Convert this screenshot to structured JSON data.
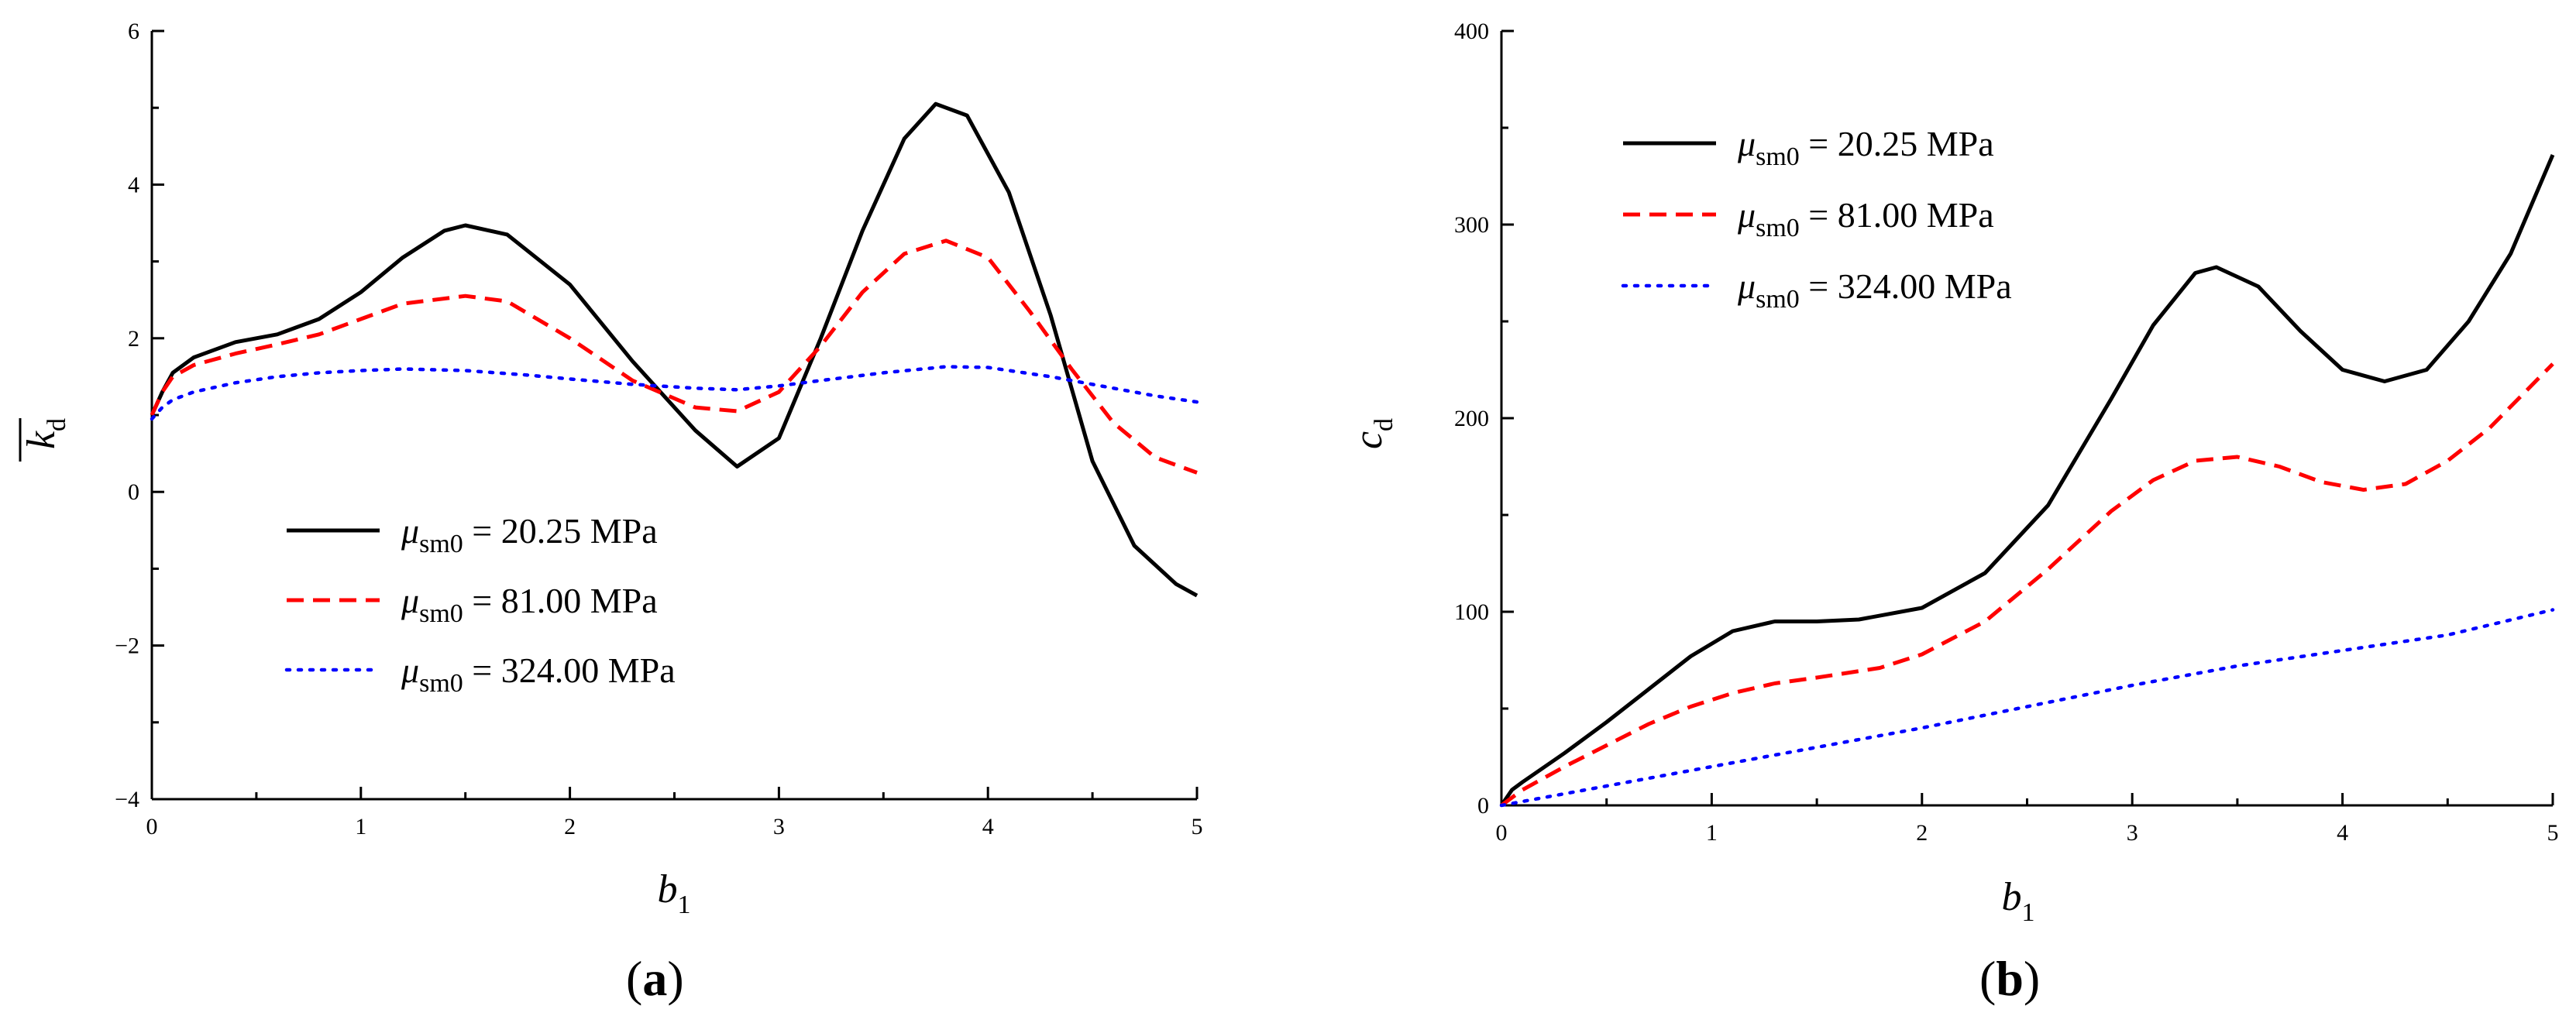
{
  "chart_data": [
    {
      "id": "a",
      "type": "line",
      "panel_label": "(a)",
      "panel_letter": "a",
      "xlabel": "b",
      "xlabel_sub": "1",
      "ylabel": "k",
      "ylabel_sub": "d",
      "xlim": [
        0,
        5
      ],
      "ylim": [
        -4,
        6
      ],
      "xticks": [
        "0",
        "1",
        "2",
        "3",
        "4",
        "5"
      ],
      "yticks": [
        "−4",
        "−2",
        "0",
        "2",
        "4",
        "6"
      ],
      "xtick_values": [
        0,
        1,
        2,
        3,
        4,
        5
      ],
      "ytick_values": [
        -4,
        -2,
        0,
        2,
        4,
        6
      ],
      "legend_position": "lower-center",
      "series": [
        {
          "name_prefix": "μ",
          "name_sub": "sm0",
          "name_rest": " = 20.25 MPa",
          "color": "#000000",
          "style": "solid",
          "x": [
            0,
            0.05,
            0.1,
            0.2,
            0.4,
            0.6,
            0.8,
            1.0,
            1.2,
            1.4,
            1.5,
            1.7,
            2.0,
            2.3,
            2.6,
            2.8,
            3.0,
            3.2,
            3.4,
            3.6,
            3.75,
            3.9,
            4.1,
            4.3,
            4.5,
            4.7,
            4.9,
            5.0
          ],
          "y": [
            1.0,
            1.3,
            1.55,
            1.75,
            1.95,
            2.05,
            2.25,
            2.6,
            3.05,
            3.4,
            3.47,
            3.35,
            2.7,
            1.7,
            0.8,
            0.33,
            0.7,
            2.0,
            3.4,
            4.6,
            5.05,
            4.9,
            3.9,
            2.3,
            0.4,
            -0.7,
            -1.2,
            -1.35
          ]
        },
        {
          "name_prefix": "μ",
          "name_sub": "sm0",
          "name_rest": " = 81.00 MPa",
          "color": "#ff0000",
          "style": "dashed",
          "x": [
            0,
            0.05,
            0.1,
            0.2,
            0.4,
            0.6,
            0.8,
            1.0,
            1.2,
            1.5,
            1.7,
            2.0,
            2.3,
            2.6,
            2.8,
            3.0,
            3.2,
            3.4,
            3.6,
            3.8,
            4.0,
            4.2,
            4.4,
            4.6,
            4.8,
            5.0
          ],
          "y": [
            1.0,
            1.3,
            1.5,
            1.65,
            1.8,
            1.92,
            2.05,
            2.25,
            2.45,
            2.55,
            2.48,
            2.0,
            1.45,
            1.1,
            1.05,
            1.3,
            1.9,
            2.6,
            3.1,
            3.27,
            3.05,
            2.35,
            1.6,
            0.9,
            0.45,
            0.25
          ]
        },
        {
          "name_prefix": "μ",
          "name_sub": "sm0",
          "name_rest": " = 324.00 MPa",
          "color": "#0000ff",
          "style": "dotted",
          "x": [
            0,
            0.05,
            0.1,
            0.2,
            0.4,
            0.6,
            0.8,
            1.0,
            1.2,
            1.5,
            1.8,
            2.0,
            2.3,
            2.6,
            2.8,
            3.0,
            3.2,
            3.5,
            3.8,
            4.0,
            4.3,
            4.6,
            4.8,
            5.0
          ],
          "y": [
            0.95,
            1.1,
            1.2,
            1.3,
            1.42,
            1.5,
            1.55,
            1.58,
            1.6,
            1.58,
            1.52,
            1.47,
            1.4,
            1.35,
            1.33,
            1.38,
            1.45,
            1.55,
            1.63,
            1.62,
            1.5,
            1.35,
            1.25,
            1.17
          ]
        }
      ]
    },
    {
      "id": "b",
      "type": "line",
      "panel_label": "(b)",
      "panel_letter": "b",
      "xlabel": "b",
      "xlabel_sub": "1",
      "ylabel": "c",
      "ylabel_sub": "d",
      "xlim": [
        0,
        5
      ],
      "ylim": [
        0,
        400
      ],
      "xticks": [
        "0",
        "1",
        "2",
        "3",
        "4",
        "5"
      ],
      "yticks": [
        "0",
        "100",
        "200",
        "300",
        "400"
      ],
      "xtick_values": [
        0,
        1,
        2,
        3,
        4,
        5
      ],
      "ytick_values": [
        0,
        100,
        200,
        300,
        400
      ],
      "legend_position": "upper-left",
      "series": [
        {
          "name_prefix": "μ",
          "name_sub": "sm0",
          "name_rest": " = 20.25 MPa",
          "color": "#000000",
          "style": "solid",
          "x": [
            0,
            0.05,
            0.1,
            0.3,
            0.5,
            0.7,
            0.9,
            1.1,
            1.3,
            1.5,
            1.7,
            2.0,
            2.3,
            2.6,
            2.9,
            3.1,
            3.3,
            3.4,
            3.6,
            3.8,
            4.0,
            4.2,
            4.4,
            4.6,
            4.8,
            5.0
          ],
          "y": [
            0,
            8,
            12,
            27,
            43,
            60,
            77,
            90,
            95,
            95,
            96,
            102,
            120,
            155,
            210,
            248,
            275,
            278,
            268,
            245,
            225,
            219,
            225,
            250,
            285,
            336
          ]
        },
        {
          "name_prefix": "μ",
          "name_sub": "sm0",
          "name_rest": " = 81.00 MPa",
          "color": "#ff0000",
          "style": "dashed",
          "x": [
            0,
            0.1,
            0.3,
            0.5,
            0.7,
            0.9,
            1.1,
            1.3,
            1.5,
            1.8,
            2.0,
            2.3,
            2.6,
            2.9,
            3.1,
            3.3,
            3.5,
            3.7,
            3.9,
            4.1,
            4.3,
            4.5,
            4.7,
            5.0
          ],
          "y": [
            0,
            8,
            20,
            31,
            42,
            51,
            58,
            63,
            66,
            71,
            78,
            95,
            122,
            152,
            168,
            178,
            180,
            175,
            167,
            163,
            166,
            178,
            195,
            228
          ]
        },
        {
          "name_prefix": "μ",
          "name_sub": "sm0",
          "name_rest": " = 324.00 MPa",
          "color": "#0000ff",
          "style": "dotted",
          "x": [
            0,
            0.5,
            1.0,
            1.5,
            2.0,
            2.5,
            3.0,
            3.5,
            4.0,
            4.5,
            5.0
          ],
          "y": [
            0,
            10,
            20,
            30,
            40,
            51,
            62,
            72,
            80,
            88,
            101
          ]
        }
      ]
    }
  ]
}
